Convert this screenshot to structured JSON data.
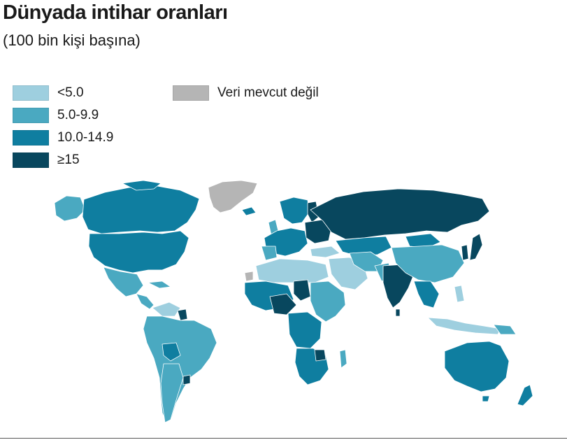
{
  "title": "Dünyada intihar oranları",
  "subtitle": "(100 bin kişi başına)",
  "legend": [
    {
      "label": "<5.0",
      "color": "#9ecfdf"
    },
    {
      "label": "5.0-9.9",
      "color": "#4aa9c1"
    },
    {
      "label": "10.0-14.9",
      "color": "#0f7ea0"
    },
    {
      "label": "≥15",
      "color": "#08475e"
    },
    {
      "label": "Veri mevcut değil",
      "color": "#b5b5b5"
    }
  ],
  "colors": {
    "lt5": "#9ecfdf",
    "c5_10": "#4aa9c1",
    "c10_15": "#0f7ea0",
    "ge15": "#08475e",
    "nodata": "#b5b5b5",
    "border": "#ffffff"
  }
}
